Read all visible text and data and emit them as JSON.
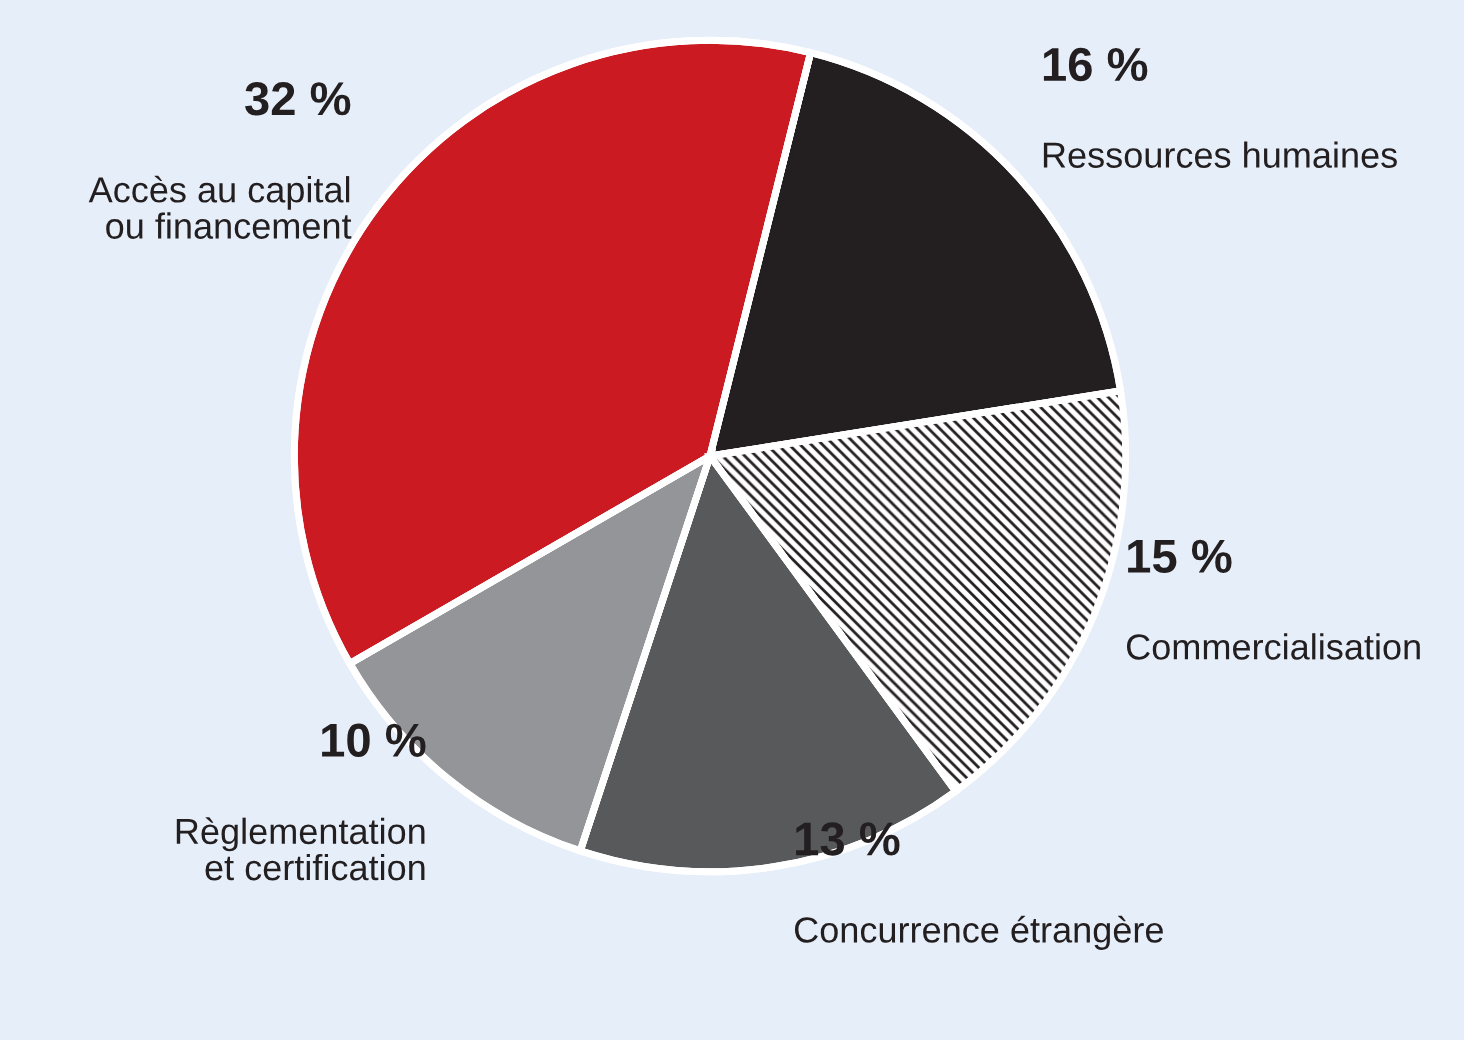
{
  "chart_data": {
    "type": "pie",
    "categories": [
      "Ressources humaines",
      "Commercialisation",
      "Concurrence étrangère",
      "Règlementation\net certification",
      "Accès au capital\nou financement"
    ],
    "values": [
      16,
      15,
      13,
      10,
      32
    ],
    "value_labels": [
      "16 %",
      "15 %",
      "13 %",
      "10 %",
      "32 %"
    ],
    "colors": [
      "#231f20",
      "#ffffff",
      "#58595b",
      "#939598",
      "#cc1a22"
    ]
  }
}
